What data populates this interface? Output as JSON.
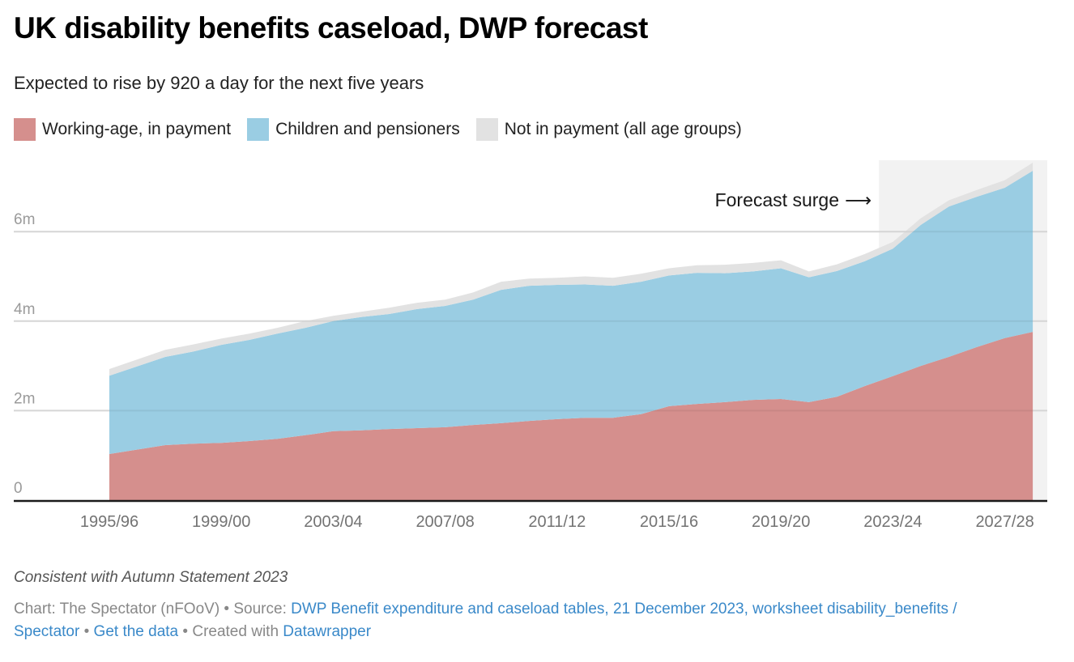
{
  "header": {
    "title": "UK disability benefits caseload, DWP forecast",
    "subtitle": "Expected to rise by 920 a day for the next five years"
  },
  "legend": [
    {
      "label": "Working-age, in payment",
      "color": "#d58f8d"
    },
    {
      "label": "Children and pensioners",
      "color": "#9acde3"
    },
    {
      "label": "Not in payment (all age groups)",
      "color": "#e2e2e2"
    }
  ],
  "annotation": {
    "text": "Forecast surge",
    "arrow": "⟶"
  },
  "footer": {
    "note": "Consistent with Autumn Statement 2023",
    "chart_credit": "Chart: The Spectator (nFOoV)",
    "sep": " • ",
    "source_prefix": "Source: ",
    "source_link": "DWP Benefit expenditure and caseload tables, 21 December 2023, worksheet disability_benefits / Spectator",
    "get_data": "Get the data",
    "created_prefix": "Created with ",
    "created_link": "Datawrapper"
  },
  "chart_data": {
    "type": "area",
    "stacked": true,
    "title": "UK disability benefits caseload, DWP forecast",
    "subtitle": "Expected to rise by 920 a day for the next five years",
    "xlabel": "",
    "ylabel": "",
    "y_unit": "millions",
    "ylim": [
      0,
      7.6
    ],
    "y_ticks": [
      0,
      2,
      4,
      6
    ],
    "y_tick_labels": [
      "0",
      "2m",
      "4m",
      "6m"
    ],
    "x_tick_labels": [
      "1995/96",
      "1999/00",
      "2003/04",
      "2007/08",
      "2011/12",
      "2015/16",
      "2019/20",
      "2023/24",
      "2027/28"
    ],
    "grid": true,
    "legend_position": "top-left",
    "forecast_start": "2023/24",
    "forecast_label": "Forecast surge",
    "x": [
      1995,
      1997,
      1998,
      1999,
      2000,
      2001,
      2002,
      2003,
      2004,
      2005,
      2006,
      2007,
      2008,
      2009,
      2010,
      2011,
      2012,
      2013,
      2014,
      2015,
      2016,
      2017,
      2018,
      2019,
      2020,
      2021,
      2022,
      2023,
      2024,
      2025,
      2026,
      2027,
      2028
    ],
    "x_labels": [
      "1995/96",
      "1997/98",
      "1998/99",
      "1999/00",
      "2000/01",
      "2001/02",
      "2002/03",
      "2003/04",
      "2004/05",
      "2005/06",
      "2006/07",
      "2007/08",
      "2008/09",
      "2009/10",
      "2010/11",
      "2011/12",
      "2012/13",
      "2013/14",
      "2014/15",
      "2015/16",
      "2016/17",
      "2017/18",
      "2018/19",
      "2019/20",
      "2020/21",
      "2021/22",
      "2022/23",
      "2023/24",
      "2024/25",
      "2025/26",
      "2026/27",
      "2027/28",
      "2028/29"
    ],
    "series": [
      {
        "name": "Working-age, in payment",
        "color": "#d58f8d",
        "values": [
          1.03,
          1.23,
          1.26,
          1.28,
          1.32,
          1.37,
          1.45,
          1.54,
          1.56,
          1.59,
          1.61,
          1.63,
          1.68,
          1.72,
          1.77,
          1.81,
          1.84,
          1.84,
          1.92,
          2.1,
          2.15,
          2.19,
          2.24,
          2.26,
          2.19,
          2.31,
          2.55,
          2.77,
          3.0,
          3.2,
          3.42,
          3.62,
          3.76
        ]
      },
      {
        "name": "Children and pensioners",
        "color": "#9acde3",
        "values": [
          1.75,
          1.97,
          2.06,
          2.19,
          2.26,
          2.35,
          2.4,
          2.46,
          2.53,
          2.57,
          2.66,
          2.71,
          2.8,
          2.98,
          3.02,
          3.0,
          2.98,
          2.95,
          2.96,
          2.92,
          2.93,
          2.88,
          2.87,
          2.92,
          2.79,
          2.81,
          2.79,
          2.85,
          3.15,
          3.36,
          3.36,
          3.36,
          3.6
        ]
      },
      {
        "name": "Not in payment (all age groups)",
        "color": "#e2e2e2",
        "values": [
          0.15,
          0.16,
          0.16,
          0.14,
          0.14,
          0.13,
          0.15,
          0.12,
          0.12,
          0.14,
          0.14,
          0.14,
          0.16,
          0.18,
          0.16,
          0.16,
          0.18,
          0.18,
          0.18,
          0.16,
          0.17,
          0.19,
          0.19,
          0.18,
          0.13,
          0.15,
          0.16,
          0.15,
          0.15,
          0.14,
          0.15,
          0.17,
          0.18
        ]
      }
    ]
  }
}
